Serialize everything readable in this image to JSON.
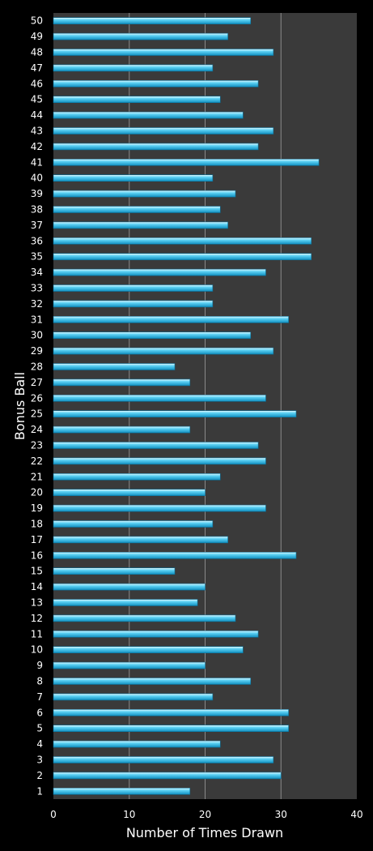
{
  "chart_data": {
    "type": "bar",
    "orientation": "horizontal",
    "title": "",
    "xlabel": "Number of Times Drawn",
    "ylabel": "Bonus Ball",
    "xlim": [
      0,
      40
    ],
    "x_ticks": [
      "0",
      "10",
      "20",
      "30",
      "40"
    ],
    "grid": true,
    "categories": [
      "1",
      "2",
      "3",
      "4",
      "5",
      "6",
      "7",
      "8",
      "9",
      "10",
      "11",
      "12",
      "13",
      "14",
      "15",
      "16",
      "17",
      "18",
      "19",
      "20",
      "21",
      "22",
      "23",
      "24",
      "25",
      "26",
      "27",
      "28",
      "29",
      "30",
      "31",
      "32",
      "33",
      "34",
      "35",
      "36",
      "37",
      "38",
      "39",
      "40",
      "41",
      "42",
      "43",
      "44",
      "45",
      "46",
      "47",
      "48",
      "49",
      "50"
    ],
    "values": [
      18,
      30,
      29,
      22,
      31,
      31,
      21,
      26,
      20,
      25,
      27,
      24,
      19,
      20,
      16,
      32,
      23,
      21,
      28,
      20,
      22,
      28,
      27,
      18,
      32,
      28,
      18,
      16,
      29,
      26,
      31,
      21,
      21,
      28,
      34,
      34,
      23,
      22,
      24,
      21,
      35,
      27,
      29,
      25,
      22,
      27,
      21,
      29,
      23,
      26
    ],
    "colors": {
      "background": "#000000",
      "plot_background": "#3a3a3a",
      "bar_fill": "#1ab8e8",
      "bar_highlight": "#bfeeff",
      "gridline": "#8a8a8a",
      "text": "#ffffff"
    }
  }
}
